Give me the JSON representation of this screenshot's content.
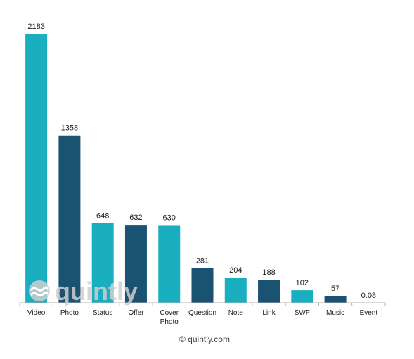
{
  "chart_data": {
    "type": "bar",
    "title": "",
    "xlabel": "",
    "ylabel": "",
    "categories": [
      "Video",
      "Photo",
      "Status",
      "Offer",
      "Cover Photo",
      "Question",
      "Note",
      "Link",
      "SWF",
      "Music",
      "Event"
    ],
    "values": [
      2183,
      1358,
      648,
      632,
      630,
      281,
      204,
      188,
      102,
      57,
      0.08
    ],
    "value_labels": [
      "2183",
      "1358",
      "648",
      "632",
      "630",
      "281",
      "204",
      "188",
      "102",
      "57",
      "0.08"
    ],
    "bar_colors": [
      "#1aafc0",
      "#1a5272",
      "#1aafc0",
      "#1a5272",
      "#1aafc0",
      "#1a5272",
      "#1aafc0",
      "#1a5272",
      "#1aafc0",
      "#1a5272",
      "#1aafc0"
    ],
    "ylim": [
      0,
      2183
    ],
    "grid": false,
    "legend": "none"
  },
  "watermark": {
    "text": "quintly",
    "icon": "quintly-logo-icon"
  },
  "footer": {
    "text": "© quintly.com"
  },
  "colors": {
    "teal": "#1aafc0",
    "navy": "#1a5272",
    "axis": "#b0b0b0",
    "watermark": "#cfcfcf"
  }
}
